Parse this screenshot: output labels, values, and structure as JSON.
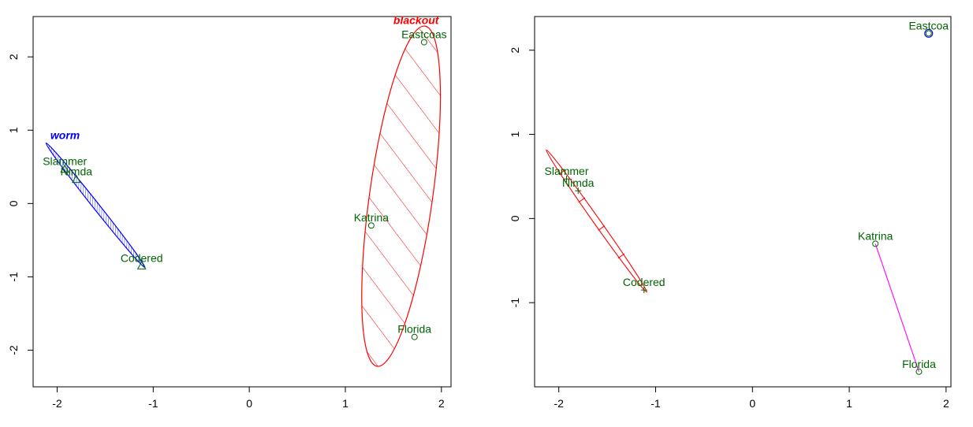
{
  "colors": {
    "point_label": "#006400",
    "worm": "#0000ff",
    "blackout": "#ff0000",
    "right_ellipse": "#ff0000",
    "right_segment": "#ff00ff",
    "right_east": "#0000ff"
  },
  "chart_data": [
    {
      "type": "scatter",
      "title": "",
      "xlabel": "",
      "ylabel": "",
      "xlim": [
        -2.25,
        2.1
      ],
      "ylim": [
        -2.5,
        2.55
      ],
      "xticks": [
        -2,
        -1,
        0,
        1,
        2
      ],
      "yticks": [
        -2,
        -1,
        0,
        1,
        2
      ],
      "points": [
        {
          "label": "Eastcoas",
          "x": 1.82,
          "y": 2.2
        },
        {
          "label": "Slammer",
          "x": -1.92,
          "y": 0.47
        },
        {
          "label": "Nimda",
          "x": -1.8,
          "y": 0.33
        },
        {
          "label": "Katrina",
          "x": 1.27,
          "y": -0.3
        },
        {
          "label": "Codered",
          "x": -1.12,
          "y": -0.85
        },
        {
          "label": "Florida",
          "x": 1.72,
          "y": -1.82
        }
      ],
      "groups": [
        {
          "name": "worm",
          "color": "#0000ff",
          "label_x": -2.07,
          "label_y": 0.88,
          "members": [
            "Slammer",
            "Nimda",
            "Codered"
          ]
        },
        {
          "name": "blackout",
          "color": "#ff0000",
          "label_x": 1.5,
          "label_y": 2.45,
          "members": [
            "Eastcoas",
            "Katrina",
            "Florida"
          ]
        }
      ]
    },
    {
      "type": "scatter",
      "title": "",
      "xlabel": "",
      "ylabel": "",
      "xlim": [
        -2.25,
        2.05
      ],
      "ylim": [
        -2.0,
        2.4
      ],
      "xticks": [
        -2,
        -1,
        0,
        1,
        2
      ],
      "yticks": [
        -1,
        0,
        1,
        2
      ],
      "points": [
        {
          "label": "Eastcoa",
          "x": 1.82,
          "y": 2.2
        },
        {
          "label": "Slammer",
          "x": -1.92,
          "y": 0.47
        },
        {
          "label": "Nimda",
          "x": -1.8,
          "y": 0.33
        },
        {
          "label": "Katrina",
          "x": 1.27,
          "y": -0.3
        },
        {
          "label": "Codered",
          "x": -1.12,
          "y": -0.85
        },
        {
          "label": "Florida",
          "x": 1.72,
          "y": -1.82
        }
      ]
    }
  ]
}
